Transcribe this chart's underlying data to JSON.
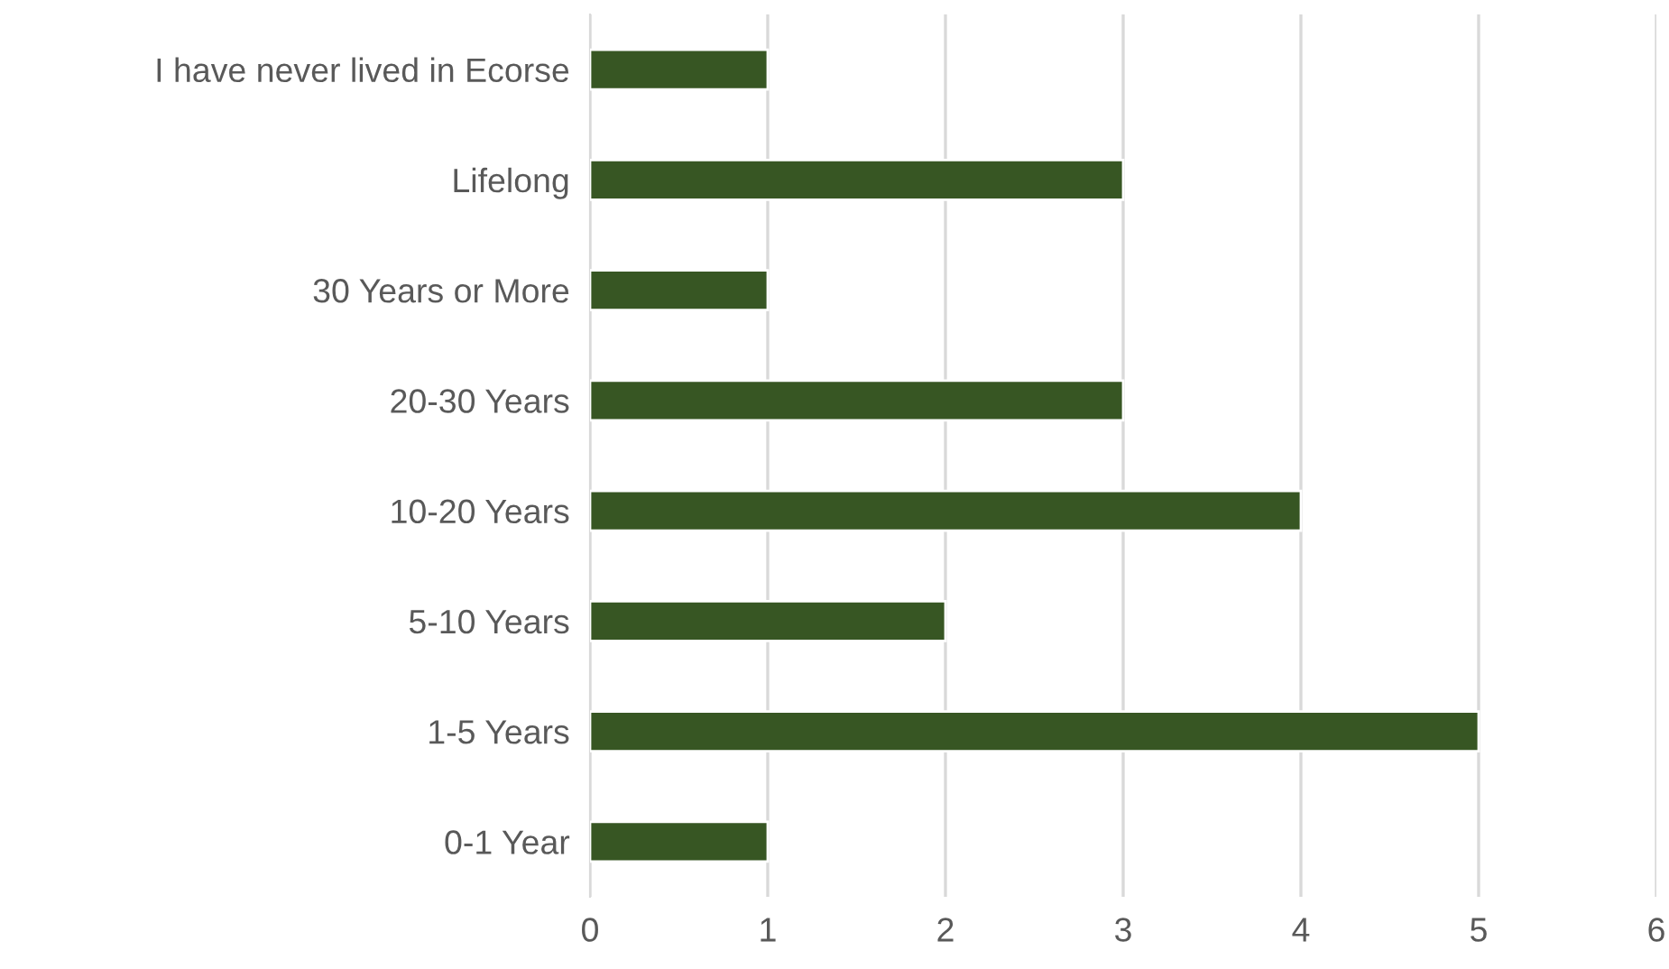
{
  "chart_data": {
    "type": "bar",
    "orientation": "horizontal",
    "categories": [
      "I have never lived in Ecorse",
      "Lifelong",
      "30 Years or More",
      "20-30 Years",
      "10-20 Years",
      "5-10 Years",
      "1-5 Years",
      "0-1 Year"
    ],
    "values": [
      1,
      3,
      1,
      3,
      4,
      2,
      5,
      1
    ],
    "color": "#375623",
    "xlim": [
      0,
      6
    ],
    "xticks": [
      0,
      1,
      2,
      3,
      4,
      5,
      6
    ],
    "grid": "x",
    "legend": false
  }
}
